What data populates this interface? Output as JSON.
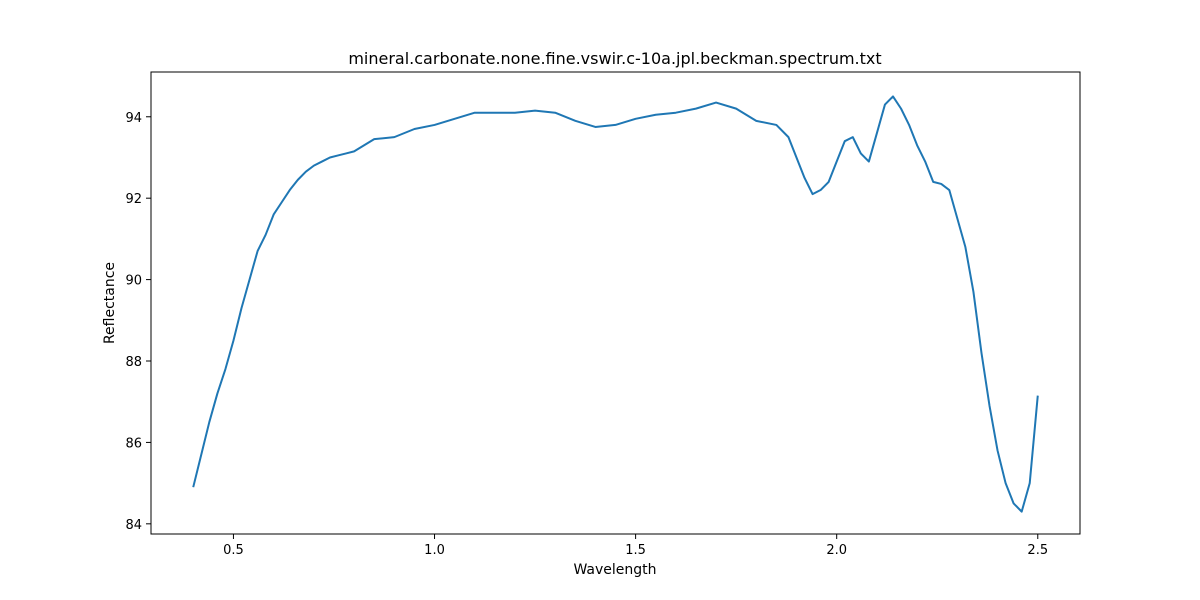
{
  "chart_data": {
    "type": "line",
    "title": "mineral.carbonate.none.fine.vswir.c-10a.jpl.beckman.spectrum.txt",
    "xlabel": "Wavelength",
    "ylabel": "Reflectance",
    "xlim": [
      0.295,
      2.605
    ],
    "ylim": [
      83.75,
      95.1
    ],
    "xticks": [
      0.5,
      1.0,
      1.5,
      2.0,
      2.5
    ],
    "xtick_labels": [
      "0.5",
      "1.0",
      "1.5",
      "2.0",
      "2.5"
    ],
    "yticks": [
      84,
      86,
      88,
      90,
      92,
      94
    ],
    "ytick_labels": [
      "84",
      "86",
      "88",
      "90",
      "92",
      "94"
    ],
    "grid": false,
    "legend": "none",
    "line_color": "#1f77b4",
    "series": [
      {
        "x": [
          0.4,
          0.42,
          0.44,
          0.46,
          0.48,
          0.5,
          0.52,
          0.54,
          0.56,
          0.58,
          0.6,
          0.62,
          0.64,
          0.66,
          0.68,
          0.7,
          0.72,
          0.74,
          0.76,
          0.78,
          0.8,
          0.85,
          0.9,
          0.95,
          1.0,
          1.05,
          1.1,
          1.15,
          1.2,
          1.25,
          1.3,
          1.35,
          1.4,
          1.45,
          1.5,
          1.55,
          1.6,
          1.65,
          1.7,
          1.75,
          1.8,
          1.85,
          1.88,
          1.9,
          1.92,
          1.94,
          1.96,
          1.98,
          2.0,
          2.02,
          2.04,
          2.06,
          2.08,
          2.1,
          2.12,
          2.14,
          2.16,
          2.18,
          2.2,
          2.22,
          2.24,
          2.26,
          2.28,
          2.3,
          2.32,
          2.34,
          2.36,
          2.38,
          2.4,
          2.42,
          2.44,
          2.46,
          2.48,
          2.5
        ],
        "y": [
          84.9,
          85.7,
          86.5,
          87.2,
          87.8,
          88.5,
          89.3,
          90.0,
          90.7,
          91.1,
          91.6,
          91.9,
          92.2,
          92.45,
          92.65,
          92.8,
          92.9,
          93.0,
          93.05,
          93.1,
          93.15,
          93.45,
          93.5,
          93.7,
          93.8,
          93.95,
          94.1,
          94.1,
          94.1,
          94.15,
          94.1,
          93.9,
          93.75,
          93.8,
          93.95,
          94.05,
          94.1,
          94.2,
          94.35,
          94.2,
          93.9,
          93.8,
          93.5,
          93.0,
          92.5,
          92.1,
          92.2,
          92.4,
          92.9,
          93.4,
          93.5,
          93.1,
          92.9,
          93.6,
          94.3,
          94.5,
          94.2,
          93.8,
          93.3,
          92.9,
          92.4,
          92.35,
          92.2,
          91.5,
          90.8,
          89.7,
          88.2,
          86.9,
          85.8,
          85.0,
          84.5,
          84.3,
          85.0,
          87.15
        ]
      }
    ]
  }
}
